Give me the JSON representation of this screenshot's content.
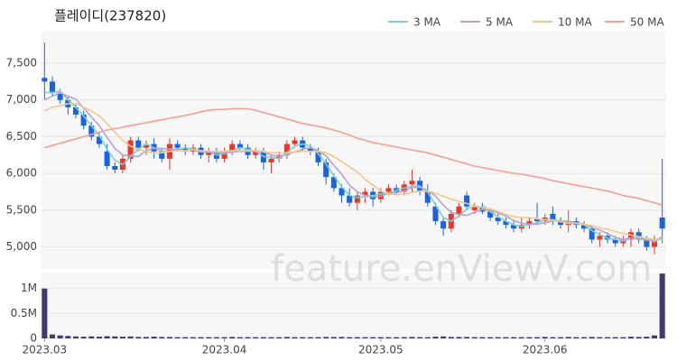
{
  "chart_data": [
    {
      "type": "candlestick",
      "title": "플레이디(237820)",
      "watermark": "feature.enViewV.com",
      "up_color": "#e8372c",
      "down_color": "#1b64da",
      "grid": true,
      "legend": "top-right",
      "categories": [
        "2023.03",
        null,
        null,
        null,
        null,
        null,
        null,
        null,
        null,
        null,
        null,
        null,
        null,
        null,
        null,
        null,
        null,
        null,
        null,
        null,
        null,
        null,
        null,
        "2023.04",
        null,
        null,
        null,
        null,
        null,
        null,
        null,
        null,
        null,
        null,
        null,
        null,
        null,
        null,
        null,
        null,
        null,
        null,
        null,
        "2023.05",
        null,
        null,
        null,
        null,
        null,
        null,
        null,
        null,
        null,
        null,
        null,
        null,
        null,
        null,
        null,
        null,
        null,
        null,
        null,
        null,
        "2023.06",
        null,
        null,
        null,
        null,
        null,
        null,
        null,
        null,
        null,
        null,
        null,
        null,
        null,
        null,
        null
      ],
      "open": [
        7300,
        7250,
        7100,
        7000,
        6900,
        6800,
        6650,
        6500,
        6300,
        6100,
        6050,
        6200,
        6450,
        6350,
        6400,
        6300,
        6200,
        6400,
        6350,
        6300,
        6350,
        6250,
        6300,
        6200,
        6300,
        6400,
        6350,
        6250,
        6300,
        6150,
        6200,
        6250,
        6400,
        6450,
        6350,
        6300,
        6150,
        5950,
        5800,
        5700,
        5600,
        5700,
        5750,
        5650,
        5750,
        5800,
        5750,
        5850,
        5900,
        5750,
        5550,
        5350,
        5250,
        5450,
        5700,
        5500,
        5550,
        5480,
        5400,
        5350,
        5300,
        5250,
        5300,
        5380,
        5350,
        5450,
        5350,
        5300,
        5350,
        5300,
        5250,
        5100,
        5150,
        5100,
        5050,
        5100,
        5200,
        5100,
        5000,
        5400
      ],
      "high": [
        7780,
        7320,
        7150,
        7050,
        6950,
        6850,
        6700,
        6550,
        6400,
        6150,
        6250,
        6500,
        6500,
        6450,
        6480,
        6350,
        6480,
        6450,
        6400,
        6400,
        6400,
        6350,
        6350,
        6350,
        6450,
        6450,
        6400,
        6350,
        6350,
        6250,
        6300,
        6450,
        6500,
        6500,
        6400,
        6350,
        6200,
        6000,
        5850,
        5800,
        5750,
        5800,
        5800,
        5800,
        5850,
        5850,
        5900,
        6050,
        5950,
        5850,
        5600,
        5400,
        5500,
        5600,
        5750,
        5600,
        5600,
        5500,
        5450,
        5400,
        5350,
        5400,
        5400,
        5600,
        5450,
        5550,
        5400,
        5500,
        5400,
        5350,
        5300,
        5200,
        5200,
        5150,
        5150,
        5250,
        5250,
        5150,
        5150,
        6200
      ],
      "low": [
        7000,
        7050,
        6950,
        6800,
        6750,
        6600,
        6450,
        6350,
        6050,
        6000,
        6000,
        6150,
        6300,
        6250,
        6200,
        6150,
        6050,
        6300,
        6250,
        6250,
        6200,
        6150,
        6150,
        6150,
        6250,
        6300,
        6200,
        6200,
        6050,
        6000,
        6150,
        6200,
        6350,
        6300,
        6250,
        6100,
        5850,
        5750,
        5600,
        5550,
        5500,
        5600,
        5550,
        5600,
        5700,
        5700,
        5700,
        5750,
        5700,
        5550,
        5300,
        5150,
        5200,
        5400,
        5500,
        5450,
        5450,
        5350,
        5300,
        5250,
        5200,
        5200,
        5250,
        5300,
        5300,
        5300,
        5250,
        5200,
        5250,
        5200,
        5050,
        5000,
        5050,
        5000,
        5000,
        5000,
        5050,
        4950,
        4900,
        5050
      ],
      "close": [
        7250,
        7100,
        7000,
        6900,
        6800,
        6650,
        6500,
        6400,
        6100,
        6050,
        6200,
        6450,
        6350,
        6400,
        6300,
        6200,
        6400,
        6350,
        6300,
        6350,
        6250,
        6300,
        6200,
        6300,
        6400,
        6350,
        6250,
        6300,
        6150,
        6200,
        6250,
        6400,
        6450,
        6350,
        6300,
        6150,
        5950,
        5800,
        5700,
        5600,
        5700,
        5750,
        5650,
        5750,
        5800,
        5750,
        5850,
        5900,
        5750,
        5600,
        5350,
        5250,
        5450,
        5550,
        5550,
        5550,
        5480,
        5400,
        5350,
        5300,
        5250,
        5300,
        5350,
        5350,
        5400,
        5350,
        5300,
        5350,
        5300,
        5250,
        5100,
        5150,
        5100,
        5050,
        5100,
        5200,
        5100,
        5000,
        5100,
        5250
      ],
      "series": [
        {
          "name": "3 MA",
          "color": "#7ecfd0",
          "values": [
            7100,
            7100,
            7120,
            7000,
            6900,
            6780,
            6650,
            6520,
            6330,
            6180,
            6120,
            6230,
            6330,
            6400,
            6350,
            6300,
            6300,
            6320,
            6350,
            6330,
            6300,
            6300,
            6250,
            6270,
            6300,
            6350,
            6330,
            6300,
            6230,
            6220,
            6200,
            6280,
            6370,
            6400,
            6370,
            6270,
            6130,
            5970,
            5820,
            5700,
            5670,
            5680,
            5700,
            5720,
            5730,
            5770,
            5800,
            5830,
            5830,
            5750,
            5570,
            5400,
            5350,
            5420,
            5520,
            5550,
            5530,
            5480,
            5410,
            5350,
            5300,
            5280,
            5300,
            5330,
            5370,
            5370,
            5350,
            5330,
            5320,
            5300,
            5220,
            5170,
            5120,
            5100,
            5080,
            5120,
            5130,
            5100,
            5070,
            5120
          ]
        },
        {
          "name": "5 MA",
          "color": "#b5a2cf",
          "values": [
            7000,
            7050,
            7100,
            7050,
            7010,
            6890,
            6770,
            6650,
            6490,
            6340,
            6250,
            6240,
            6230,
            6310,
            6340,
            6340,
            6330,
            6330,
            6310,
            6320,
            6290,
            6290,
            6280,
            6280,
            6290,
            6300,
            6300,
            6300,
            6290,
            6250,
            6230,
            6260,
            6290,
            6330,
            6350,
            6310,
            6240,
            6110,
            5990,
            5840,
            5750,
            5700,
            5680,
            5690,
            5730,
            5740,
            5760,
            5810,
            5810,
            5770,
            5690,
            5570,
            5470,
            5440,
            5430,
            5470,
            5510,
            5500,
            5460,
            5420,
            5360,
            5320,
            5310,
            5310,
            5330,
            5350,
            5350,
            5350,
            5330,
            5310,
            5260,
            5230,
            5180,
            5130,
            5100,
            5120,
            5110,
            5090,
            5090,
            5130
          ]
        },
        {
          "name": "10 MA",
          "color": "#f0c88c",
          "values": [
            6850,
            6900,
            6920,
            6950,
            6950,
            6900,
            6850,
            6780,
            6680,
            6560,
            6450,
            6370,
            6330,
            6300,
            6280,
            6280,
            6300,
            6310,
            6310,
            6330,
            6310,
            6300,
            6300,
            6300,
            6310,
            6310,
            6310,
            6310,
            6300,
            6280,
            6280,
            6280,
            6290,
            6300,
            6300,
            6300,
            6280,
            6230,
            6160,
            6090,
            6020,
            5920,
            5840,
            5760,
            5720,
            5710,
            5720,
            5740,
            5760,
            5760,
            5730,
            5690,
            5650,
            5620,
            5590,
            5560,
            5540,
            5520,
            5480,
            5440,
            5410,
            5400,
            5400,
            5380,
            5370,
            5360,
            5340,
            5320,
            5320,
            5310,
            5290,
            5260,
            5240,
            5210,
            5180,
            5160,
            5140,
            5120,
            5100,
            5100
          ]
        },
        {
          "name": "50 MA",
          "color": "#f3a08e",
          "values": [
            6350,
            6380,
            6410,
            6440,
            6470,
            6500,
            6530,
            6560,
            6590,
            6610,
            6630,
            6650,
            6670,
            6690,
            6710,
            6730,
            6750,
            6770,
            6790,
            6810,
            6840,
            6860,
            6870,
            6870,
            6880,
            6880,
            6880,
            6860,
            6830,
            6800,
            6770,
            6740,
            6710,
            6680,
            6660,
            6640,
            6620,
            6590,
            6560,
            6520,
            6480,
            6450,
            6420,
            6400,
            6380,
            6360,
            6340,
            6320,
            6300,
            6280,
            6250,
            6220,
            6190,
            6160,
            6130,
            6100,
            6080,
            6060,
            6040,
            6020,
            6000,
            5990,
            5970,
            5950,
            5930,
            5900,
            5880,
            5860,
            5840,
            5820,
            5800,
            5780,
            5760,
            5730,
            5700,
            5680,
            5660,
            5630,
            5600,
            5570
          ]
        }
      ],
      "ylim": [
        4700,
        7930
      ],
      "yticks": [
        {
          "value": 5000,
          "label": "5,000"
        },
        {
          "value": 5500,
          "label": "5,500"
        },
        {
          "value": 6000,
          "label": "6,000"
        },
        {
          "value": 6500,
          "label": "6,500"
        },
        {
          "value": 7000,
          "label": "7,000"
        },
        {
          "value": 7500,
          "label": "7,500"
        }
      ]
    },
    {
      "type": "bar",
      "color": "#3c3c6e",
      "grid": true,
      "values": [
        1000000,
        80000,
        60000,
        50000,
        40000,
        35000,
        40000,
        35000,
        45000,
        40000,
        35000,
        40000,
        30000,
        30000,
        35000,
        30000,
        30000,
        25000,
        25000,
        25000,
        25000,
        25000,
        25000,
        25000,
        30000,
        25000,
        25000,
        25000,
        25000,
        25000,
        25000,
        30000,
        25000,
        25000,
        25000,
        25000,
        30000,
        30000,
        30000,
        25000,
        25000,
        25000,
        25000,
        25000,
        25000,
        25000,
        25000,
        30000,
        25000,
        25000,
        35000,
        40000,
        30000,
        30000,
        30000,
        25000,
        25000,
        25000,
        25000,
        25000,
        25000,
        25000,
        25000,
        25000,
        30000,
        25000,
        25000,
        30000,
        25000,
        25000,
        30000,
        25000,
        25000,
        25000,
        25000,
        35000,
        30000,
        35000,
        60000,
        1300000
      ],
      "ylim": [
        0,
        1320000
      ],
      "yticks": [
        0,
        {
          "value": 500000,
          "label": "0.5M"
        },
        {
          "value": 1000000,
          "label": "1M"
        }
      ]
    }
  ]
}
